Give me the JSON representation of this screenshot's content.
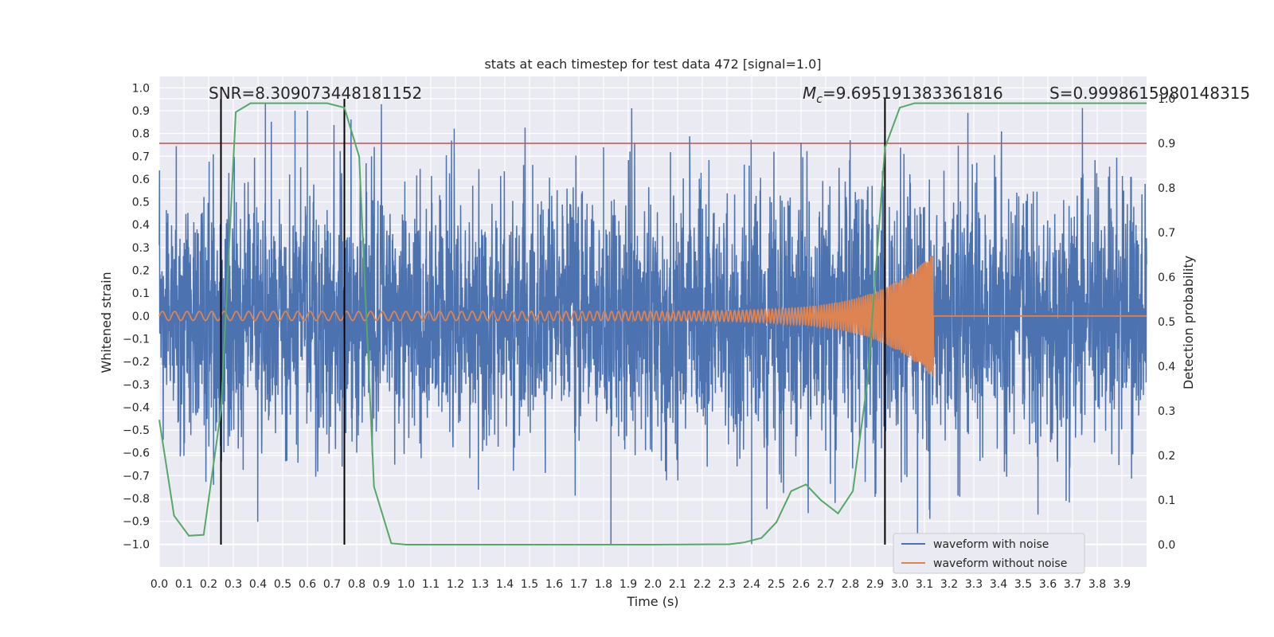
{
  "chart_data": {
    "type": "line",
    "title": "stats at each timestep for test data 472 [signal=1.0]",
    "xlabel": "Time (s)",
    "ylabel": "Whitened strain",
    "y2label": "Detection probability",
    "xlim": [
      0.0,
      4.0
    ],
    "ylim": [
      -1.1,
      1.05
    ],
    "y2lim": [
      -0.05,
      1.05
    ],
    "x_ticks": [
      "0.0",
      "0.1",
      "0.2",
      "0.3",
      "0.4",
      "0.5",
      "0.6",
      "0.7",
      "0.8",
      "0.9",
      "1.0",
      "1.1",
      "1.2",
      "1.3",
      "1.4",
      "1.5",
      "1.6",
      "1.7",
      "1.8",
      "1.9",
      "2.0",
      "2.1",
      "2.2",
      "2.3",
      "2.4",
      "2.5",
      "2.6",
      "2.7",
      "2.8",
      "2.9",
      "3.0",
      "3.1",
      "3.2",
      "3.3",
      "3.4",
      "3.5",
      "3.6",
      "3.7",
      "3.8",
      "3.9"
    ],
    "y_ticks": [
      "1.0",
      "0.9",
      "0.8",
      "0.7",
      "0.6",
      "0.5",
      "0.4",
      "0.3",
      "0.2",
      "0.1",
      "0.0",
      "−0.1",
      "−0.2",
      "−0.3",
      "−0.4",
      "−0.5",
      "−0.6",
      "−0.7",
      "−0.8",
      "−0.9",
      "−1.0"
    ],
    "y2_ticks": [
      "1.0",
      "0.9",
      "0.8",
      "0.7",
      "0.6",
      "0.5",
      "0.4",
      "0.3",
      "0.2",
      "0.1",
      "0.0"
    ],
    "grid": true,
    "legend_position": "lower-right",
    "annotations": {
      "snr": "SNR=8.309073448181152",
      "mc_symbol": "M",
      "mc_sub": "c",
      "mc_value": "=9.695191383361816",
      "s": "S=0.9998615980148315"
    },
    "threshold_line": {
      "axis": "y2",
      "value": 0.9,
      "color": "#c44e52"
    },
    "vertical_lines": [
      0.25,
      0.75,
      2.94
    ],
    "series": [
      {
        "name": "waveform with noise",
        "color": "#4c72b0",
        "noise_amplitude": 0.28,
        "notable_peaks": [
          [
            0.43,
            0.93
          ],
          [
            0.55,
            0.9
          ],
          [
            0.6,
            0.9
          ],
          [
            1.8,
            0.74
          ],
          [
            2.6,
            0.76
          ],
          [
            1.83,
            -1.0
          ],
          [
            2.4,
            -1.0
          ],
          [
            0.22,
            -0.74
          ],
          [
            3.12,
            -0.85
          ]
        ]
      },
      {
        "name": "waveform without noise",
        "color": "#dd8452",
        "chirp": {
          "start_amplitude": 0.02,
          "peak_amplitude": 0.27,
          "merger_time": 3.13,
          "start_frequency": 20,
          "end_frequency": 150
        }
      },
      {
        "name": "detection probability",
        "axis": "y2",
        "color": "#55a868",
        "x": [
          0.0,
          0.06,
          0.12,
          0.18,
          0.25,
          0.31,
          0.37,
          0.43,
          0.5,
          0.56,
          0.62,
          0.68,
          0.75,
          0.81,
          0.87,
          0.94,
          1.0,
          1.5,
          2.0,
          2.31,
          2.37,
          2.44,
          2.5,
          2.56,
          2.62,
          2.68,
          2.75,
          2.81,
          2.87,
          2.94,
          3.0,
          3.06,
          3.5,
          4.0
        ],
        "y": [
          0.28,
          0.065,
          0.02,
          0.022,
          0.3,
          0.97,
          0.99,
          0.99,
          0.99,
          0.99,
          0.99,
          0.99,
          0.98,
          0.87,
          0.13,
          0.003,
          0.0,
          0.0,
          0.0,
          0.001,
          0.005,
          0.015,
          0.05,
          0.12,
          0.135,
          0.1,
          0.07,
          0.12,
          0.37,
          0.89,
          0.98,
          0.99,
          0.99,
          0.99
        ]
      }
    ]
  }
}
